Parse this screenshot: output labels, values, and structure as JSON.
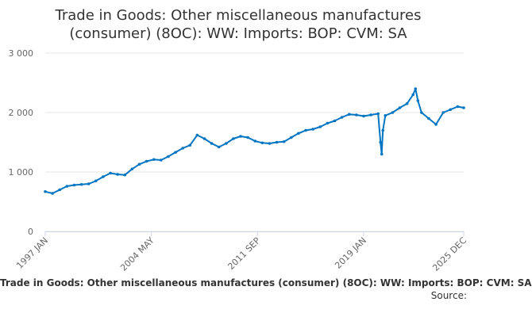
{
  "chart_data": {
    "type": "line",
    "title": [
      "Trade in Goods: Other miscellaneous manufactures",
      "(consumer) (8OC): WW: Imports: BOP: CVM: SA"
    ],
    "xlabel": "",
    "ylabel": "",
    "ylim": [
      0,
      3000
    ],
    "yticks": [
      0,
      1000,
      2000,
      3000
    ],
    "ytick_labels": [
      "0",
      "1 000",
      "2 000",
      "3 000"
    ],
    "xlim": [
      "1997 JAN",
      "2025 DEC"
    ],
    "xtick_labels": [
      "1997 JAN",
      "2004 MAY",
      "2011 SEP",
      "2019 JAN",
      "2025 DEC"
    ],
    "grid": true,
    "legend": "none",
    "line_color": "#0075c2",
    "series": [
      {
        "x": [
          "1997 JAN",
          "1997 JUL",
          "1998 JAN",
          "1998 JUL",
          "1999 JAN",
          "1999 JUL",
          "2000 JAN",
          "2000 JUL",
          "2001 JAN",
          "2001 JUL",
          "2002 JAN",
          "2002 JUL",
          "2003 JAN",
          "2003 JUL",
          "2004 JAN",
          "2004 JUL",
          "2005 JAN",
          "2005 JUL",
          "2006 JAN",
          "2006 JUL",
          "2007 JAN",
          "2007 JUL",
          "2008 JAN",
          "2008 JUL",
          "2009 JAN",
          "2009 JUL",
          "2010 JAN",
          "2010 JUL",
          "2011 JAN",
          "2011 JUL",
          "2012 JAN",
          "2012 JUL",
          "2013 JAN",
          "2013 JUL",
          "2014 JAN",
          "2014 JUL",
          "2015 JAN",
          "2015 JUL",
          "2016 JAN",
          "2016 JUL",
          "2017 JAN",
          "2017 JUL",
          "2018 JAN",
          "2018 JUL",
          "2019 JAN",
          "2019 JUL",
          "2020 JAN",
          "2020 MAR",
          "2020 APR",
          "2020 MAY",
          "2020 JUL",
          "2021 JAN",
          "2021 JUL",
          "2022 JAN",
          "2022 JUN",
          "2022 AUG",
          "2022 OCT",
          "2023 JAN",
          "2023 JUL",
          "2024 JAN",
          "2024 JUL",
          "2025 JAN",
          "2025 JUL",
          "2025 DEC"
        ],
        "values": [
          670,
          640,
          700,
          760,
          780,
          790,
          800,
          850,
          920,
          980,
          960,
          950,
          1050,
          1130,
          1180,
          1210,
          1200,
          1260,
          1330,
          1400,
          1450,
          1620,
          1560,
          1480,
          1420,
          1480,
          1560,
          1600,
          1580,
          1520,
          1490,
          1480,
          1500,
          1510,
          1580,
          1650,
          1700,
          1720,
          1760,
          1820,
          1860,
          1920,
          1970,
          1960,
          1940,
          1960,
          1980,
          1500,
          1300,
          1700,
          1950,
          2000,
          2080,
          2150,
          2300,
          2400,
          2200,
          2000,
          1900,
          1800,
          2000,
          2050,
          2100,
          2080
        ]
      }
    ]
  },
  "footer": {
    "title": "Trade in Goods: Other miscellaneous manufactures (consumer) (8OC): WW: Imports: BOP: CVM: SA",
    "source": "Source:"
  }
}
